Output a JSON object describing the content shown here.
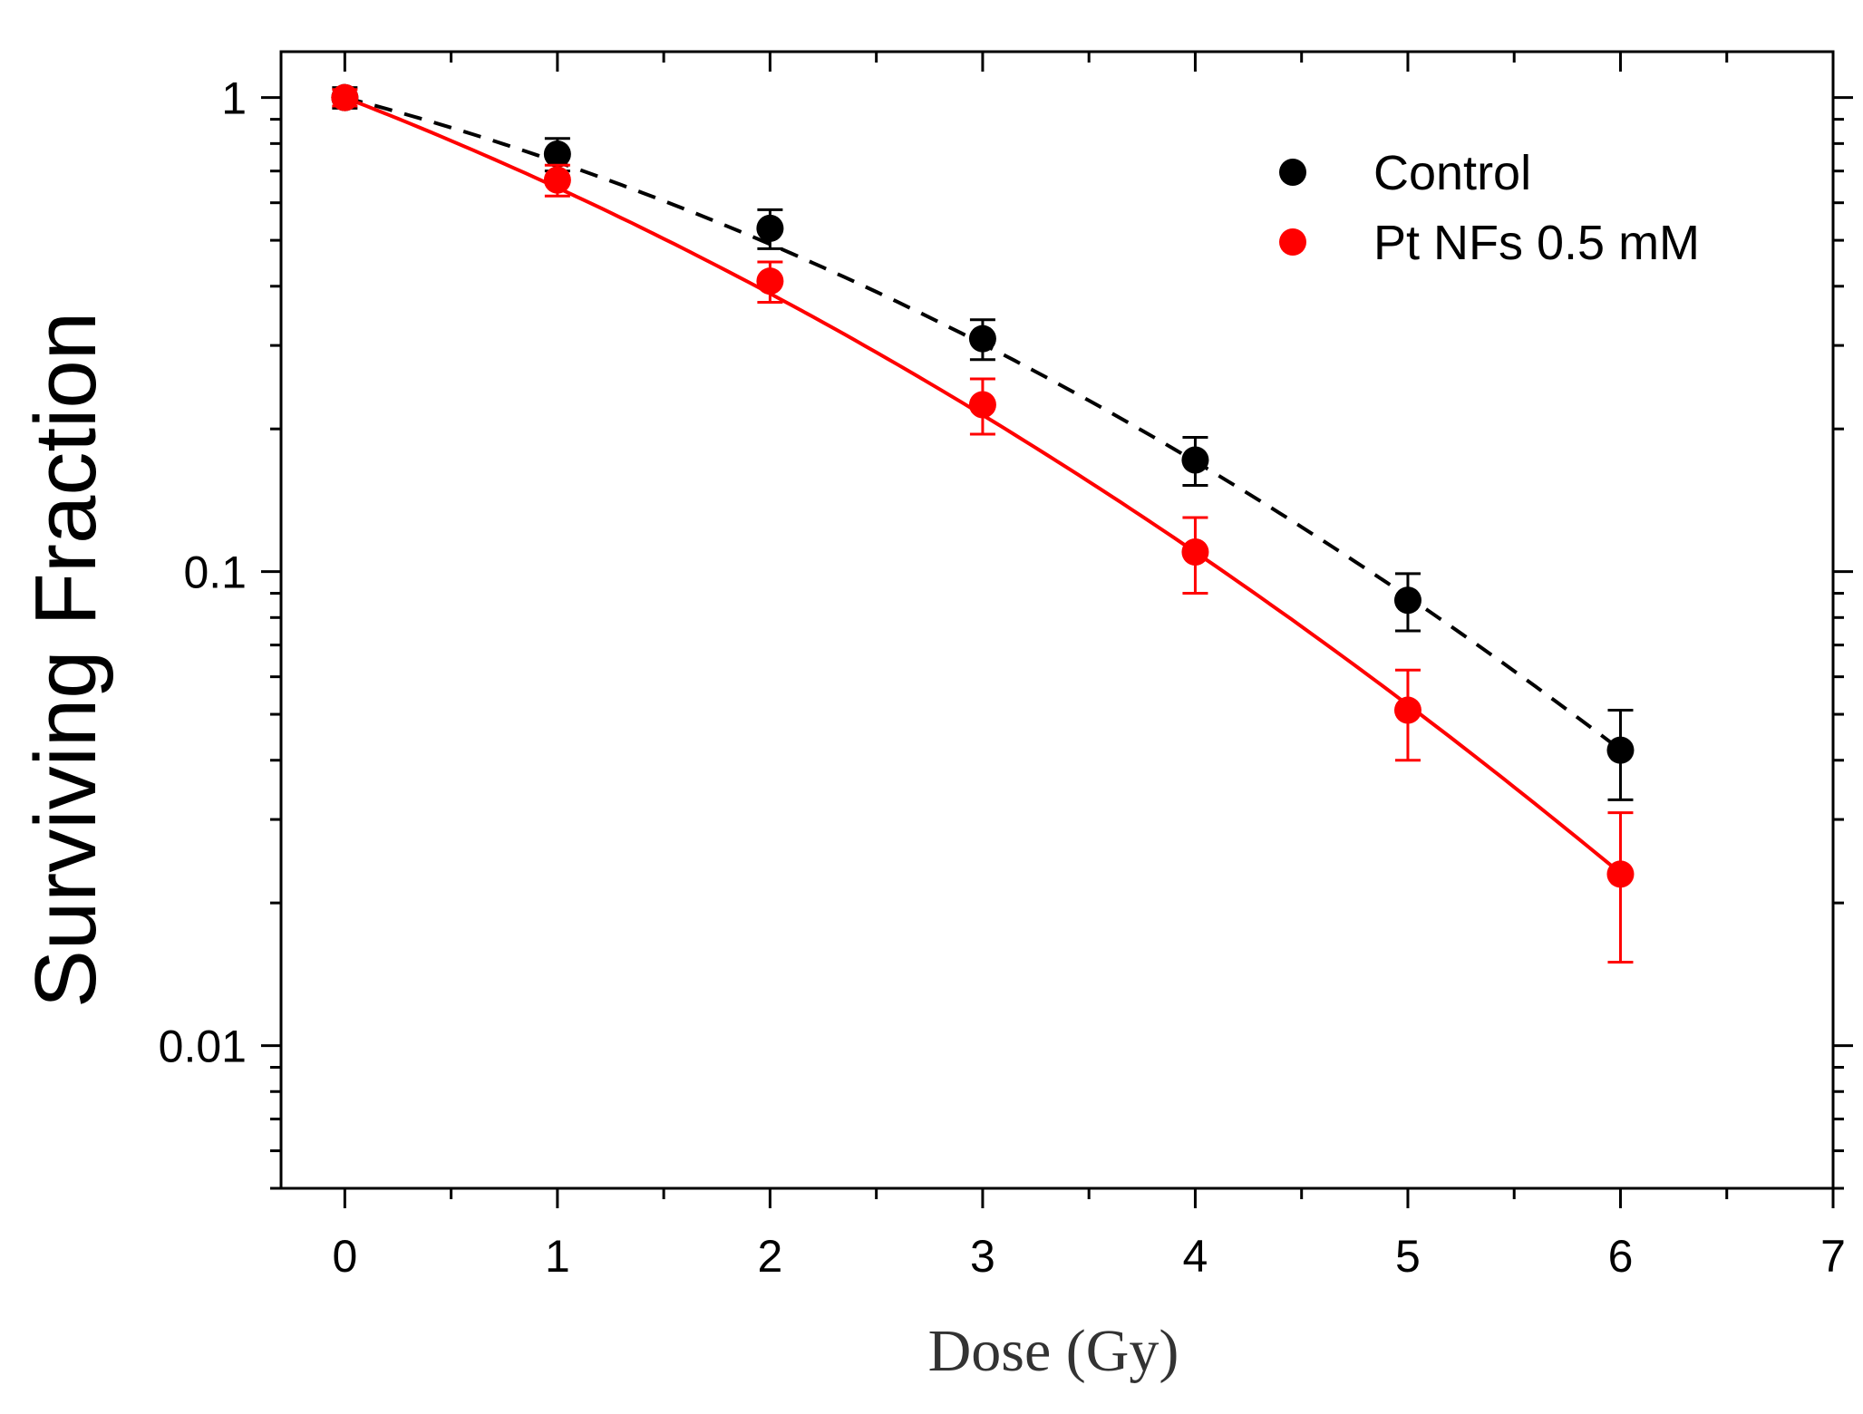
{
  "chart_data": {
    "type": "scatter",
    "title": "",
    "xlabel": "Dose (Gy)",
    "ylabel": "Surviving Fraction",
    "xlim": [
      -0.3,
      7
    ],
    "ylim": [
      0.005,
      1.25
    ],
    "yscale": "log",
    "grid": false,
    "legend_position": "top-right",
    "x_ticks": [
      0,
      1,
      2,
      3,
      4,
      5,
      6,
      7
    ],
    "x_tick_labels": [
      "0",
      "1",
      "2",
      "3",
      "4",
      "5",
      "6",
      "7"
    ],
    "y_ticks": [
      1,
      0.1,
      0.01
    ],
    "y_tick_labels": [
      "1",
      "0.1",
      "0.01"
    ],
    "series": [
      {
        "name": "Control",
        "color": "#000000",
        "fit_line_style": "dashed",
        "x": [
          0,
          1,
          2,
          3,
          4,
          5,
          6
        ],
        "values": [
          1.0,
          0.76,
          0.53,
          0.31,
          0.172,
          0.087,
          0.042
        ],
        "error": [
          0.05,
          0.06,
          0.05,
          0.03,
          0.02,
          0.012,
          0.009
        ],
        "fit": {
          "model": "linear-quadratic",
          "alpha": 0.27,
          "beta": 0.043
        }
      },
      {
        "name": "Pt NFs 0.5 mM",
        "color": "#ff0000",
        "fit_line_style": "solid",
        "x": [
          0,
          1,
          2,
          3,
          4,
          5,
          6
        ],
        "values": [
          1.0,
          0.67,
          0.41,
          0.225,
          0.11,
          0.051,
          0.023
        ],
        "error": [
          0.04,
          0.05,
          0.04,
          0.03,
          0.02,
          0.011,
          0.008
        ],
        "fit": {
          "model": "linear-quadratic",
          "alpha": 0.4,
          "beta": 0.038
        }
      }
    ]
  }
}
